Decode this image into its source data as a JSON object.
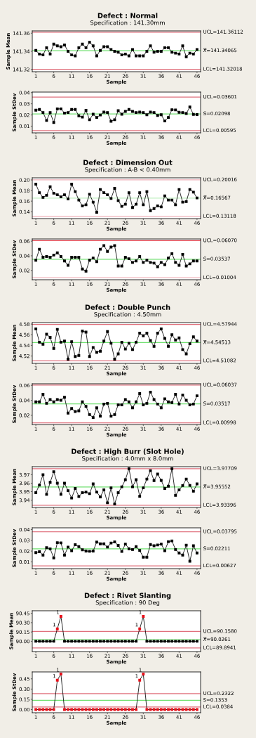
{
  "chart_data": [
    {
      "type": "line",
      "title": "Defect : Normal",
      "subtitle": "Specification : 141.30mm",
      "xlabel": "Sample",
      "ylabel": "Sample Mean",
      "marker": "square",
      "line_style": "solid",
      "x": [
        1,
        2,
        3,
        4,
        5,
        6,
        7,
        8,
        9,
        10,
        11,
        12,
        13,
        14,
        15,
        16,
        17,
        18,
        19,
        20,
        21,
        22,
        23,
        24,
        25,
        26,
        27,
        28,
        29,
        30,
        31,
        32,
        33,
        34,
        35,
        36,
        37,
        38,
        39,
        40,
        41,
        42,
        43,
        44,
        45,
        46
      ],
      "xlim": [
        0,
        47
      ],
      "xticks": [
        1,
        6,
        11,
        16,
        21,
        26,
        31,
        36,
        41,
        46
      ],
      "ylim": [
        141.3175,
        141.3625
      ],
      "yticks": [
        141.32,
        141.34,
        141.36
      ],
      "series": [
        {
          "color": "#000000",
          "values": [
            141.341,
            141.337,
            141.336,
            141.344,
            141.337,
            141.348,
            141.346,
            141.345,
            141.347,
            141.34,
            141.336,
            141.335,
            141.344,
            141.348,
            141.344,
            141.35,
            141.346,
            141.335,
            141.341,
            141.345,
            141.345,
            141.342,
            141.34,
            141.339,
            141.336,
            141.337,
            141.335,
            141.342,
            141.335,
            141.335,
            141.335,
            141.34,
            141.346,
            141.339,
            141.34,
            141.34,
            141.344,
            141.344,
            141.339,
            141.338,
            141.337,
            141.346,
            141.334,
            141.338,
            141.337,
            141.342
          ]
        }
      ],
      "ref_lines": [
        {
          "axis": "y",
          "value": 141.36112,
          "label": "UCL=141.36112",
          "color": "#e0707c"
        },
        {
          "axis": "y",
          "value": 141.34065,
          "label": "X̿=141.34065",
          "color": "#70e070"
        },
        {
          "axis": "y",
          "value": 141.32018,
          "label": "LCL=141.32018",
          "color": "#e0707c"
        }
      ]
    },
    {
      "type": "line",
      "xlabel": "Sample",
      "ylabel": "Sample StDev",
      "marker": "square",
      "line_style": "solid",
      "x": [
        1,
        2,
        3,
        4,
        5,
        6,
        7,
        8,
        9,
        10,
        11,
        12,
        13,
        14,
        15,
        16,
        17,
        18,
        19,
        20,
        21,
        22,
        23,
        24,
        25,
        26,
        27,
        28,
        29,
        30,
        31,
        32,
        33,
        34,
        35,
        36,
        37,
        38,
        39,
        40,
        41,
        42,
        43,
        44,
        45,
        46
      ],
      "xlim": [
        0,
        47
      ],
      "xticks": [
        1,
        6,
        11,
        16,
        21,
        26,
        31,
        36,
        41,
        46
      ],
      "ylim": [
        0.004,
        0.0405
      ],
      "yticks": [
        0.01,
        0.02,
        0.03,
        0.04
      ],
      "series": [
        {
          "color": "#000000",
          "values": [
            0.0243,
            0.0249,
            0.0222,
            0.0151,
            0.0222,
            0.0133,
            0.0255,
            0.0255,
            0.0217,
            0.0222,
            0.0249,
            0.0249,
            0.0193,
            0.0181,
            0.0241,
            0.0157,
            0.0207,
            0.0178,
            0.02,
            0.0226,
            0.0222,
            0.0144,
            0.0157,
            0.0238,
            0.0207,
            0.0232,
            0.0249,
            0.0232,
            0.0222,
            0.0226,
            0.0222,
            0.0202,
            0.0226,
            0.0222,
            0.0196,
            0.0202,
            0.0146,
            0.0178,
            0.0247,
            0.0245,
            0.0224,
            0.0222,
            0.0213,
            0.0271,
            0.0205,
            0.0204
          ]
        }
      ],
      "ref_lines": [
        {
          "axis": "y",
          "value": 0.03601,
          "label": "UCL=0.03601",
          "color": "#e0707c"
        },
        {
          "axis": "y",
          "value": 0.02098,
          "label": "S̄=0.02098",
          "color": "#70e070"
        },
        {
          "axis": "y",
          "value": 0.00595,
          "label": "LCL=0.00595",
          "color": "#e0707c"
        }
      ]
    },
    {
      "type": "line",
      "title": "Defect : Dimension Out",
      "subtitle": "Specification : A-B < 0.40mm",
      "xlabel": "Sample",
      "ylabel": "Sample Mean",
      "marker": "square",
      "line_style": "solid",
      "x": [
        1,
        2,
        3,
        4,
        5,
        6,
        7,
        8,
        9,
        10,
        11,
        12,
        13,
        14,
        15,
        16,
        17,
        18,
        19,
        20,
        21,
        22,
        23,
        24,
        25,
        26,
        27,
        28,
        29,
        30,
        31,
        32,
        33,
        34,
        35,
        36,
        37,
        38,
        39,
        40,
        41,
        42,
        43,
        44,
        45,
        46
      ],
      "xlim": [
        0,
        47
      ],
      "xticks": [
        1,
        6,
        11,
        16,
        21,
        26,
        31,
        36,
        41,
        46
      ],
      "ylim": [
        0.127,
        0.204
      ],
      "yticks": [
        0.14,
        0.16,
        0.18,
        {
          "value": 0.2,
          "label": "0.20"
        }
      ],
      "series": [
        {
          "color": "#000000",
          "values": [
            0.192,
            0.176,
            0.167,
            0.171,
            0.187,
            0.175,
            0.172,
            0.168,
            0.172,
            0.164,
            0.192,
            0.178,
            0.162,
            0.151,
            0.153,
            0.173,
            0.158,
            0.139,
            0.182,
            0.176,
            0.172,
            0.165,
            0.184,
            0.161,
            0.15,
            0.154,
            0.176,
            0.148,
            0.154,
            0.176,
            0.153,
            0.178,
            0.142,
            0.146,
            0.151,
            0.149,
            0.17,
            0.162,
            0.162,
            0.153,
            0.182,
            0.158,
            0.159,
            0.182,
            0.177,
            0.166
          ]
        }
      ],
      "ref_lines": [
        {
          "axis": "y",
          "value": 0.20016,
          "label": "UCL=0.20016",
          "color": "#f0b0b8"
        },
        {
          "axis": "y",
          "value": 0.16567,
          "label": "X̿=0.16567",
          "color": "#c0f0c0"
        },
        {
          "axis": "y",
          "value": 0.13118,
          "label": "LCL=0.13118",
          "color": "#f0b0b8"
        }
      ]
    },
    {
      "type": "line",
      "xlabel": "Sample",
      "ylabel": "Sample StDev",
      "marker": "square",
      "line_style": "solid",
      "x": [
        1,
        2,
        3,
        4,
        5,
        6,
        7,
        8,
        9,
        10,
        11,
        12,
        13,
        14,
        15,
        16,
        17,
        18,
        19,
        20,
        21,
        22,
        23,
        24,
        25,
        26,
        27,
        28,
        29,
        30,
        31,
        32,
        33,
        34,
        35,
        36,
        37,
        38,
        39,
        40,
        41,
        42,
        43,
        44,
        45,
        46
      ],
      "xlim": [
        0,
        47
      ],
      "xticks": [
        1,
        6,
        11,
        16,
        21,
        26,
        31,
        36,
        41,
        46
      ],
      "ylim": [
        0.0073,
        0.063
      ],
      "yticks": [
        0.02,
        0.04,
        0.06
      ],
      "series": [
        {
          "color": "#000000",
          "values": [
            0.034,
            0.049,
            0.038,
            0.039,
            0.038,
            0.041,
            0.044,
            0.039,
            0.033,
            0.027,
            0.038,
            0.038,
            0.038,
            0.022,
            0.019,
            0.034,
            0.037,
            0.032,
            0.049,
            0.054,
            0.046,
            0.052,
            0.054,
            0.026,
            0.026,
            0.038,
            0.036,
            0.031,
            0.033,
            0.039,
            0.031,
            0.034,
            0.031,
            0.03,
            0.025,
            0.031,
            0.028,
            0.037,
            0.043,
            0.031,
            0.027,
            0.042,
            0.026,
            0.029,
            0.033,
            0.033
          ]
        }
      ],
      "ref_lines": [
        {
          "axis": "y",
          "value": 0.0607,
          "label": "UCL=0.06070",
          "color": "#e0404c"
        },
        {
          "axis": "y",
          "value": 0.03537,
          "label": "S̄=0.03537",
          "color": "#70e070"
        },
        {
          "axis": "y",
          "value": 0.01004,
          "label": "LCL=0.01004",
          "color": "#f0b0b8"
        }
      ]
    },
    {
      "type": "line",
      "title": "Defect : Double Punch",
      "subtitle": "Specification : 4.50mm",
      "xlabel": "Sample",
      "ylabel": "Sample Mean",
      "marker": "square",
      "line_style": "solid",
      "x": [
        1,
        2,
        3,
        4,
        5,
        6,
        7,
        8,
        9,
        10,
        11,
        12,
        13,
        14,
        15,
        16,
        17,
        18,
        19,
        20,
        21,
        22,
        23,
        24,
        25,
        26,
        27,
        28,
        29,
        30,
        31,
        32,
        33,
        34,
        35,
        36,
        37,
        38,
        39,
        40,
        41,
        42,
        43,
        44,
        45,
        46
      ],
      "xlim": [
        0,
        47
      ],
      "xticks": [
        1,
        6,
        11,
        16,
        21,
        26,
        31,
        36,
        41,
        46
      ],
      "ylim": [
        4.5061,
        4.5828
      ],
      "yticks": [
        4.52,
        4.54,
        4.56,
        4.58
      ],
      "series": [
        {
          "color": "#000000",
          "values": [
            4.571,
            4.546,
            4.542,
            4.561,
            4.555,
            4.534,
            4.57,
            4.546,
            4.548,
            4.514,
            4.547,
            4.519,
            4.521,
            4.567,
            4.565,
            4.519,
            4.536,
            4.527,
            4.529,
            4.548,
            4.566,
            4.544,
            4.514,
            4.524,
            4.546,
            4.533,
            4.544,
            4.532,
            4.546,
            4.563,
            4.558,
            4.563,
            4.549,
            4.538,
            4.563,
            4.571,
            4.553,
            4.538,
            4.56,
            4.55,
            4.554,
            4.532,
            4.524,
            4.543,
            4.556,
            4.548
          ]
        }
      ],
      "ref_lines": [
        {
          "axis": "y",
          "value": 4.57944,
          "label": "UCL=4.57944",
          "color": "#e0707c"
        },
        {
          "axis": "y",
          "value": 4.54513,
          "label": "X̿=4.54513",
          "color": "#70e070"
        },
        {
          "axis": "y",
          "value": 4.51082,
          "label": "LCL=4.51082",
          "color": "#e0707c"
        }
      ]
    },
    {
      "type": "line",
      "xlabel": "Sample",
      "ylabel": "Sample StDev",
      "marker": "square",
      "line_style": "solid",
      "x": [
        1,
        2,
        3,
        4,
        5,
        6,
        7,
        8,
        9,
        10,
        11,
        12,
        13,
        14,
        15,
        16,
        17,
        18,
        19,
        20,
        21,
        22,
        23,
        24,
        25,
        26,
        27,
        28,
        29,
        30,
        31,
        32,
        33,
        34,
        35,
        36,
        37,
        38,
        39,
        40,
        41,
        42,
        43,
        44,
        45,
        46
      ],
      "xlim": [
        0,
        47
      ],
      "xticks": [
        1,
        6,
        11,
        16,
        21,
        26,
        31,
        36,
        41,
        46
      ],
      "ylim": [
        0.0077,
        0.0621
      ],
      "yticks": [
        0.02,
        0.04,
        0.06
      ],
      "series": [
        {
          "color": "#000000",
          "values": [
            0.038,
            0.038,
            0.048,
            0.036,
            0.041,
            0.038,
            0.041,
            0.04,
            0.044,
            0.023,
            0.029,
            0.025,
            0.026,
            0.038,
            0.032,
            0.021,
            0.017,
            0.03,
            0.019,
            0.035,
            0.036,
            0.019,
            0.021,
            0.034,
            0.034,
            0.041,
            0.038,
            0.03,
            0.038,
            0.049,
            0.034,
            0.036,
            0.051,
            0.041,
            0.035,
            0.03,
            0.042,
            0.038,
            0.037,
            0.048,
            0.035,
            0.047,
            0.04,
            0.034,
            0.035,
            0.046
          ]
        }
      ],
      "ref_lines": [
        {
          "axis": "y",
          "value": 0.06037,
          "label": "UCL=0.06037",
          "color": "#e0707c"
        },
        {
          "axis": "y",
          "value": 0.03517,
          "label": "S̄=0.03517",
          "color": "#70e070"
        },
        {
          "axis": "y",
          "value": 0.00998,
          "label": "LCL=0.00998",
          "color": "#e0707c"
        }
      ]
    },
    {
      "type": "line",
      "title": "Defect : High Burr (Slot Hole)",
      "subtitle": "Specification : 4.0mm x 8.0mm",
      "xlabel": "Sample",
      "ylabel": "Sample Mean",
      "marker": "square",
      "line_style": "solid",
      "x": [
        1,
        2,
        3,
        4,
        5,
        6,
        7,
        8,
        9,
        10,
        11,
        12,
        13,
        14,
        15,
        16,
        17,
        18,
        19,
        20,
        21,
        22,
        23,
        24,
        25,
        26,
        27,
        28,
        29,
        30,
        31,
        32,
        33,
        34,
        35,
        36,
        37,
        38,
        39,
        40,
        41,
        42,
        43,
        44,
        45,
        46
      ],
      "xlim": [
        0,
        47
      ],
      "xticks": [
        1,
        6,
        11,
        16,
        21,
        26,
        31,
        36,
        41,
        46
      ],
      "ylim": [
        3.9314,
        3.9794
      ],
      "yticks": [
        3.94,
        3.95,
        3.96,
        3.97
      ],
      "series": [
        {
          "color": "#000000",
          "values": [
            3.9488,
            3.9578,
            3.97,
            3.9468,
            3.961,
            3.9735,
            3.96,
            3.9468,
            3.96,
            3.9512,
            3.9425,
            3.9537,
            3.9443,
            3.9488,
            3.9495,
            3.9476,
            3.9591,
            3.9495,
            3.9438,
            3.9522,
            3.9369,
            3.9545,
            3.9354,
            3.9488,
            3.9557,
            3.9641,
            3.977,
            3.9557,
            3.9641,
            3.9445,
            3.9545,
            3.9648,
            3.9747,
            3.9631,
            3.9707,
            3.9633,
            3.9537,
            3.9564,
            3.977,
            3.9456,
            3.9522,
            3.9572,
            3.9648,
            3.9574,
            3.9505,
            3.9591
          ]
        }
      ],
      "ref_lines": [
        {
          "axis": "y",
          "value": 3.97709,
          "label": "UCL=3.97709",
          "color": "#e0707c"
        },
        {
          "axis": "y",
          "value": 3.95552,
          "label": "X̿=3.95552",
          "color": "#70e070"
        },
        {
          "axis": "y",
          "value": 3.93396,
          "label": "LCL=3.93396",
          "color": "#e0707c"
        }
      ]
    },
    {
      "type": "line",
      "xlabel": "Sample",
      "ylabel": "Sample StDev",
      "marker": "square",
      "line_style": "solid",
      "x": [
        1,
        2,
        3,
        4,
        5,
        6,
        7,
        8,
        9,
        10,
        11,
        12,
        13,
        14,
        15,
        16,
        17,
        18,
        19,
        20,
        21,
        22,
        23,
        24,
        25,
        26,
        27,
        28,
        29,
        30,
        31,
        32,
        33,
        34,
        35,
        36,
        37,
        38,
        39,
        40,
        41,
        42,
        43,
        44,
        45,
        46
      ],
      "xlim": [
        0,
        47
      ],
      "xticks": [
        1,
        6,
        11,
        16,
        21,
        26,
        31,
        36,
        41,
        46
      ],
      "ylim": [
        0.0037,
        0.0416
      ],
      "yticks": [
        0.01,
        0.02,
        0.03,
        0.04
      ],
      "series": [
        {
          "color": "#000000",
          "values": [
            0.0186,
            0.0194,
            0.0163,
            0.0231,
            0.0221,
            0.0137,
            0.0278,
            0.0276,
            0.0163,
            0.0237,
            0.0204,
            0.0259,
            0.0241,
            0.0212,
            0.02,
            0.0198,
            0.02,
            0.0284,
            0.0267,
            0.0267,
            0.0237,
            0.0275,
            0.0286,
            0.0253,
            0.0196,
            0.0265,
            0.0222,
            0.0214,
            0.0241,
            0.0206,
            0.0143,
            0.0143,
            0.0261,
            0.0249,
            0.0257,
            0.0265,
            0.0204,
            0.0288,
            0.0294,
            0.0214,
            0.0182,
            0.0163,
            0.0255,
            0.0106,
            0.0249,
            0.0182
          ]
        }
      ],
      "ref_lines": [
        {
          "axis": "y",
          "value": 0.03795,
          "label": "UCL=0.03795",
          "color": "#e0707c"
        },
        {
          "axis": "y",
          "value": 0.02211,
          "label": "S̄=0.02211",
          "color": "#70e070"
        },
        {
          "axis": "y",
          "value": 0.00627,
          "label": "LCL=0.00627",
          "color": "#e0707c"
        }
      ]
    },
    {
      "type": "line",
      "title": "Defect : Rivet Slanting",
      "subtitle": "Specification : 90 Deg",
      "xlabel": "Sample",
      "ylabel": "Sample Mean",
      "marker": "square",
      "line_style": "solid",
      "x": [
        1,
        2,
        3,
        4,
        5,
        6,
        7,
        8,
        9,
        10,
        11,
        12,
        13,
        14,
        15,
        16,
        17,
        18,
        19,
        20,
        21,
        22,
        23,
        24,
        25,
        26,
        27,
        28,
        29,
        30,
        31,
        32,
        33,
        34,
        35,
        36,
        37,
        38,
        39,
        40,
        41,
        42,
        43,
        44,
        45,
        46
      ],
      "xlim": [
        0,
        47
      ],
      "xticks": [
        1,
        6,
        11,
        16,
        21,
        26,
        31,
        36,
        41,
        46
      ],
      "ylim": [
        89.835,
        90.491
      ],
      "yticks": [
        {
          "value": 90.0,
          "label": "90.00"
        },
        90.15,
        {
          "value": 90.3,
          "label": "90.30"
        },
        90.45
      ],
      "series": [
        {
          "color": "#000000",
          "values": [
            90.0,
            90.0,
            90.0,
            90.0,
            90.0,
            90.0,
            90.2,
            90.4,
            90.0,
            90.0,
            90.0,
            90.0,
            90.0,
            90.0,
            90.0,
            90.0,
            90.0,
            90.0,
            90.0,
            90.0,
            90.0,
            90.0,
            90.0,
            90.0,
            90.0,
            90.0,
            90.0,
            90.0,
            90.0,
            90.2,
            90.4,
            90.0,
            90.0,
            90.0,
            90.0,
            90.0,
            90.0,
            90.0,
            90.0,
            90.0,
            90.0,
            90.0,
            90.0,
            90.0,
            90.0,
            90.0
          ],
          "colors": [
            "#000000",
            "#000000",
            "#000000",
            "#000000",
            "#000000",
            "#000000",
            "#e8101a",
            "#e8101a",
            "#000000",
            "#000000",
            "#000000",
            "#000000",
            "#000000",
            "#000000",
            "#000000",
            "#000000",
            "#000000",
            "#000000",
            "#000000",
            "#000000",
            "#000000",
            "#000000",
            "#000000",
            "#000000",
            "#000000",
            "#000000",
            "#000000",
            "#000000",
            "#000000",
            "#e8101a",
            "#e8101a",
            "#000000",
            "#000000",
            "#000000",
            "#000000",
            "#000000",
            "#000000",
            "#000000",
            "#000000",
            "#000000",
            "#000000",
            "#000000",
            "#000000",
            "#000000",
            "#000000",
            "#000000"
          ]
        }
      ],
      "ref_lines": [
        {
          "axis": "y",
          "value": 90.158,
          "label": "UCL=90.1580",
          "color": "#e0707c"
        },
        {
          "axis": "y",
          "value": 90.0261,
          "label": "X̿=90.0261",
          "color": "#70e070"
        },
        {
          "axis": "y",
          "value": 89.8941,
          "label": "LCL=89.8941",
          "color": "#e0707c"
        }
      ],
      "annotations": [
        {
          "text": "1",
          "x": 7,
          "y": 90.2
        },
        {
          "text": "1",
          "x": 8,
          "y": 90.4
        },
        {
          "text": "1",
          "x": 30,
          "y": 90.2
        },
        {
          "text": "1",
          "x": 31,
          "y": 90.4
        }
      ]
    },
    {
      "type": "line",
      "xlabel": "Sample",
      "ylabel": "Sample StDev",
      "marker": "square",
      "line_style": "solid",
      "x": [
        1,
        2,
        3,
        4,
        5,
        6,
        7,
        8,
        9,
        10,
        11,
        12,
        13,
        14,
        15,
        16,
        17,
        18,
        19,
        20,
        21,
        22,
        23,
        24,
        25,
        26,
        27,
        28,
        29,
        30,
        31,
        32,
        33,
        34,
        35,
        36,
        37,
        38,
        39,
        40,
        41,
        42,
        43,
        44,
        45,
        46
      ],
      "xlim": [
        0,
        47
      ],
      "xticks": [
        1,
        6,
        11,
        16,
        21,
        26,
        31,
        36,
        41,
        46
      ],
      "ylim": [
        -0.046,
        0.551
      ],
      "yticks": [
        {
          "value": 0.0,
          "label": "0.00"
        },
        0.15,
        {
          "value": 0.3,
          "label": "0.30"
        },
        0.45
      ],
      "series": [
        {
          "color": "#000000",
          "values": [
            0,
            0,
            0,
            0,
            0,
            0,
            0.43,
            0.52,
            0,
            0,
            0,
            0,
            0,
            0,
            0,
            0,
            0,
            0,
            0,
            0,
            0,
            0,
            0,
            0,
            0,
            0,
            0,
            0,
            0,
            0.43,
            0.52,
            0,
            0,
            0,
            0,
            0,
            0,
            0,
            0,
            0,
            0,
            0,
            0,
            0,
            0,
            0
          ],
          "colors": [
            "#e8101a",
            "#e8101a",
            "#e8101a",
            "#e8101a",
            "#e8101a",
            "#e8101a",
            "#e8101a",
            "#e8101a",
            "#e8101a",
            "#e8101a",
            "#e8101a",
            "#e8101a",
            "#e8101a",
            "#e8101a",
            "#e8101a",
            "#e8101a",
            "#e8101a",
            "#e8101a",
            "#e8101a",
            "#e8101a",
            "#e8101a",
            "#e8101a",
            "#e8101a",
            "#e8101a",
            "#e8101a",
            "#e8101a",
            "#e8101a",
            "#e8101a",
            "#e8101a",
            "#e8101a",
            "#e8101a",
            "#e8101a",
            "#e8101a",
            "#e8101a",
            "#e8101a",
            "#e8101a",
            "#e8101a",
            "#e8101a",
            "#e8101a",
            "#e8101a",
            "#e8101a",
            "#e8101a",
            "#e8101a",
            "#e8101a",
            "#e8101a",
            "#e8101a"
          ]
        }
      ],
      "ref_lines": [
        {
          "axis": "y",
          "value": 0.2322,
          "label": "UCL=0.2322",
          "color": "#e0707c"
        },
        {
          "axis": "y",
          "value": 0.1353,
          "label": "S̄=0.1353",
          "color": "#70e070"
        },
        {
          "axis": "y",
          "value": 0.0384,
          "label": "LCL=0.0384",
          "color": "#e0707c"
        }
      ],
      "annotations": [
        {
          "text": "1",
          "x": 7,
          "y": 0.43
        },
        {
          "text": "1",
          "x": 8,
          "y": 0.52
        },
        {
          "text": "1",
          "x": 30,
          "y": 0.43
        },
        {
          "text": "1",
          "x": 31,
          "y": 0.52
        }
      ]
    }
  ]
}
